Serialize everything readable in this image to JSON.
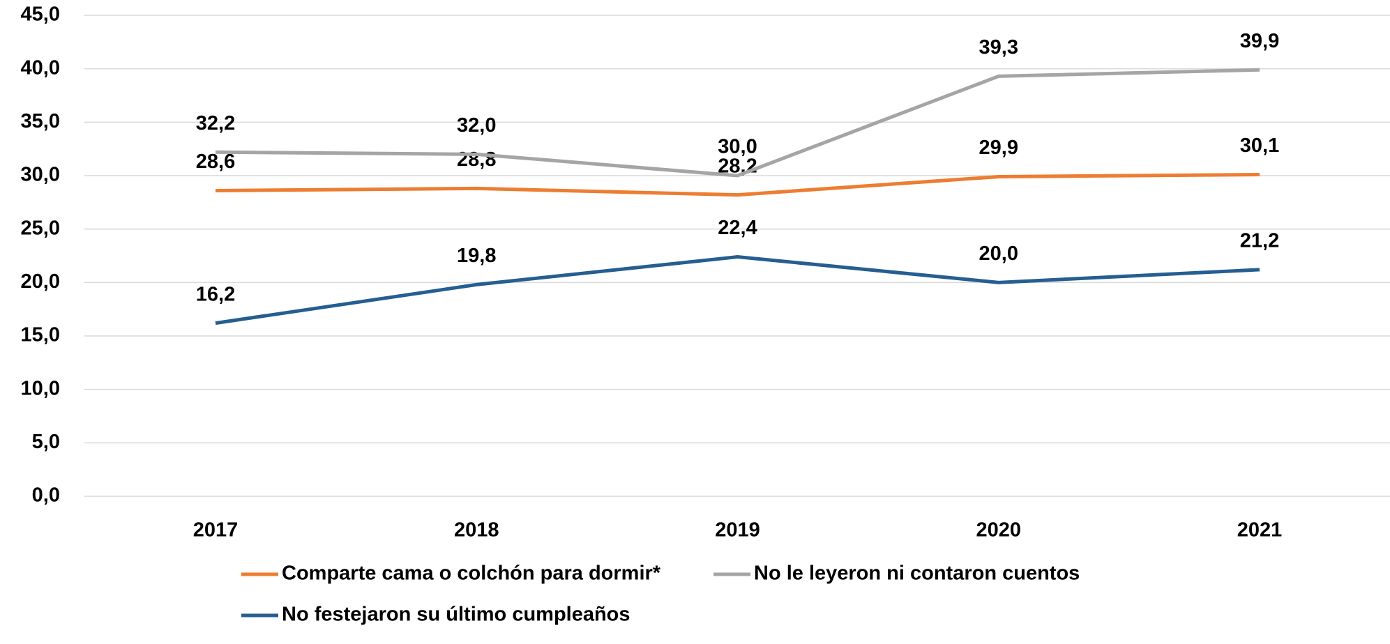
{
  "chart_data": {
    "type": "line",
    "categories": [
      "2017",
      "2018",
      "2019",
      "2020",
      "2021"
    ],
    "series": [
      {
        "name": "Comparte cama o colchón para dormir*",
        "color": "#ED7D31",
        "values": [
          28.6,
          28.8,
          28.2,
          29.9,
          30.1
        ],
        "value_labels": [
          "28,6",
          "28,8",
          "28,2",
          "29,9",
          "30,1"
        ]
      },
      {
        "name": "No le leyeron ni contaron cuentos",
        "color": "#A5A5A5",
        "values": [
          32.2,
          32.0,
          30.0,
          39.3,
          39.9
        ],
        "value_labels": [
          "32,2",
          "32,0",
          "30,0",
          "39,3",
          "39,9"
        ]
      },
      {
        "name": "No festejaron su último cumpleaños",
        "color": "#255E91",
        "values": [
          16.2,
          19.8,
          22.4,
          20.0,
          21.2
        ],
        "value_labels": [
          "16,2",
          "19,8",
          "22,4",
          "20,0",
          "21,2"
        ]
      }
    ],
    "ylim": [
      0,
      45
    ],
    "yticks": [
      {
        "value": 0,
        "label": "0,0"
      },
      {
        "value": 5,
        "label": "5,0"
      },
      {
        "value": 10,
        "label": "10,0"
      },
      {
        "value": 15,
        "label": "15,0"
      },
      {
        "value": 20,
        "label": "20,0"
      },
      {
        "value": 25,
        "label": "25,0"
      },
      {
        "value": 30,
        "label": "30,0"
      },
      {
        "value": 35,
        "label": "35,0"
      },
      {
        "value": 40,
        "label": "40,0"
      },
      {
        "value": 45,
        "label": "45,0"
      }
    ],
    "grid": true
  }
}
